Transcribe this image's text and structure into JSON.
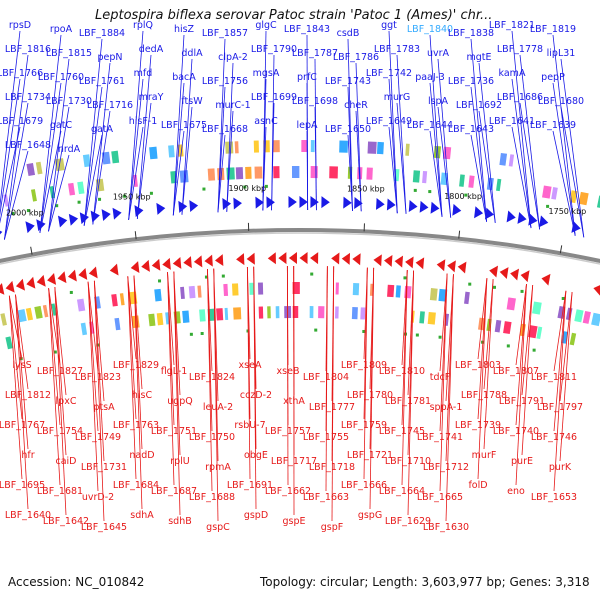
{
  "title": "Leptospira biflexa serovar Patoc strain 'Patoc 1 (Ames)' chr...",
  "footer": {
    "accession": "Accession: NC_010842",
    "summary": "Topology: circular; Length: 3,603,977 bp; Genes: 3,318"
  },
  "colors": {
    "forward": "#1a1ae6",
    "reverse": "#e61a1a",
    "highlight": "#33aaff",
    "backbone": "#888888",
    "pseudo": "#33aa33"
  },
  "ticks": [
    "2000 kbp",
    "1950 kbp",
    "1900 kbp",
    "1850 kbp",
    "1800 kbp",
    "1750 kbp"
  ],
  "forward_labels": [
    "rpsD",
    "rpoA",
    "LBF_1884",
    "rplQ",
    "hisZ",
    "LBF_1857",
    "glgC",
    "LBF_1843",
    "csdB",
    "ggt",
    "LBF_1840",
    "LBF_1838",
    "LBF_1821",
    "LBF_1819",
    "LBF_1816",
    "LBF_1815",
    "pepN",
    "dedA",
    "ddlA",
    "clpA-2",
    "LBF_1790",
    "LBF_1787",
    "LBF_1786",
    "LBF_1783",
    "uvrA",
    "mgtE",
    "LBF_1778",
    "lipL31",
    "LBF_1766",
    "LBF_1760",
    "LBF_1761",
    "mfd",
    "bacA",
    "LBF_1756",
    "mgsA",
    "prfC",
    "LBF_1743",
    "LBF_1742",
    "paaJ-3",
    "LBF_1736",
    "kamA",
    "pepP",
    "LBF_1734",
    "LBF_1730",
    "LBF_1716",
    "mraY",
    "ftsW",
    "murC-1",
    "LBF_1699",
    "LBF_1698",
    "cheR",
    "murG",
    "lspA",
    "LBF_1692",
    "LBF_1686",
    "LBF_1680",
    "LBF_1679",
    "gatC",
    "gatA",
    "hisF-1",
    "LBF_1675",
    "LBF_1668",
    "asnC",
    "lepA",
    "LBF_1650",
    "LBF_1649",
    "LBF_1644",
    "LBF_1643",
    "LBF_1641",
    "LBF_1639",
    "LBF_1648",
    "nrdA"
  ],
  "reverse_labels": [
    "lysS",
    "LBF_1827",
    "LBF_1823",
    "LBF_1829",
    "flgL-1",
    "LBF_1824",
    "xseA",
    "xseB",
    "LBF_1804",
    "LBF_1809",
    "LBF_1810",
    "tdcF",
    "LBF_1803",
    "LBF_1807",
    "LBF_1811",
    "LBF_1812",
    "lpxC",
    "ptsA",
    "hisC",
    "ugpQ",
    "leuA-2",
    "cczD-2",
    "xthA",
    "LBF_1777",
    "LBF_1780",
    "LBF_1781",
    "sppA-1",
    "LBF_1788",
    "LBF_1791",
    "LBF_1797",
    "LBF_1767",
    "LBF_1754",
    "LBF_1749",
    "LBF_1763",
    "LBF_1751",
    "LBF_1750",
    "rsbU-7",
    "LBF_1757",
    "LBF_1755",
    "LBF_1759",
    "LBF_1745",
    "LBF_1741",
    "LBF_1739",
    "LBF_1740",
    "LBF_1746",
    "hfr",
    "caiD",
    "LBF_1731",
    "nadD",
    "rplU",
    "rpmA",
    "obgE",
    "LBF_1717",
    "LBF_1718",
    "LBF_1721",
    "LBF_1710",
    "LBF_1712",
    "murF",
    "purE",
    "purK",
    "LBF_1695",
    "LBF_1681",
    "uvrD-2",
    "LBF_1684",
    "LBF_1687",
    "LBF_1688",
    "LBF_1691",
    "LBF_1662",
    "LBF_1663",
    "LBF_1666",
    "LBF_1664",
    "LBF_1665",
    "folD",
    "eno",
    "LBF_1653",
    "LBF_1640",
    "LBF_1642",
    "LBF_1645",
    "sdhA",
    "sdhB",
    "gspC",
    "gspD",
    "gspE",
    "gspF",
    "gspG",
    "LBF_1629",
    "LBF_1630"
  ]
}
